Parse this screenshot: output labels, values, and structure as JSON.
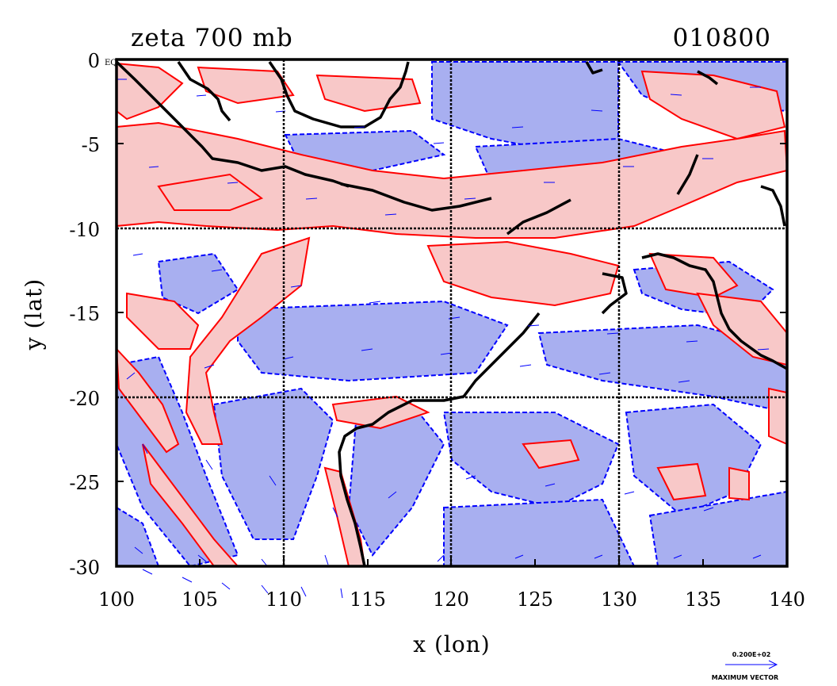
{
  "map": {
    "title_left": "zeta 700 mb",
    "title_right": "010800",
    "xlabel": "x (lon)",
    "ylabel": "y (lat)",
    "origin_note": "EQ",
    "x_ticks": [
      "100",
      "105",
      "110",
      "115",
      "120",
      "125",
      "130",
      "135",
      "140"
    ],
    "y_ticks": [
      "0",
      "-5",
      "-10",
      "-15",
      "-20",
      "-25",
      "-30"
    ],
    "lon_range": [
      100,
      140
    ],
    "lat_range": [
      -30,
      0
    ],
    "gridlines_lon": [
      110,
      120,
      130
    ],
    "gridlines_lat": [
      -10,
      -20
    ],
    "colors": {
      "positive_fill": "#f8c8c8",
      "positive_contour": "#ff0000",
      "negative_fill": "#a8aff0",
      "negative_contour": "#0000ff",
      "vector": "#0000ff",
      "coastline": "#000000"
    },
    "reference_vector": {
      "value": "0.200E+02",
      "label": "MAXIMUM VECTOR"
    }
  }
}
